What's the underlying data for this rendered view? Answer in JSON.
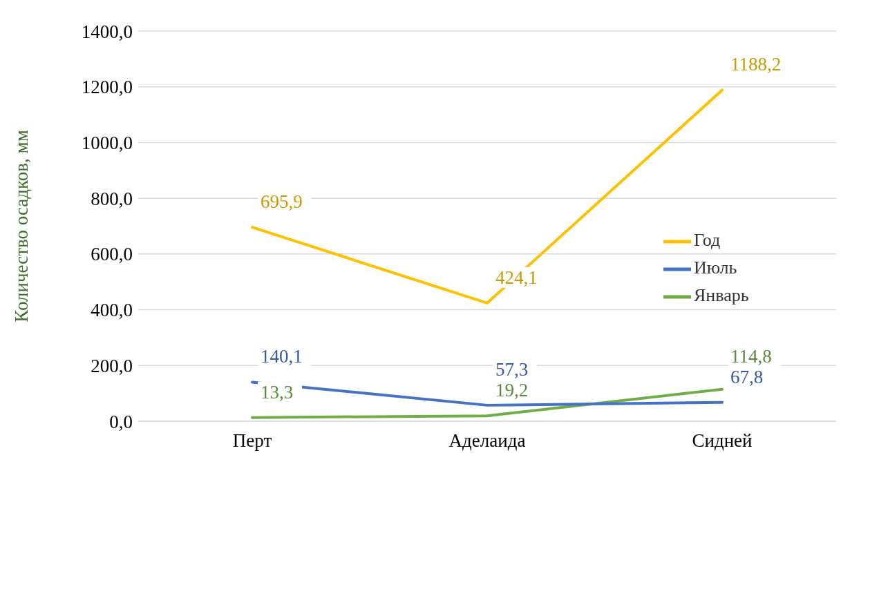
{
  "chart_data": {
    "type": "line",
    "ylabel": "Количество осадков, мм",
    "categories": [
      "Перт",
      "Аделаида",
      "Сидней"
    ],
    "series": [
      {
        "name": "Январь",
        "color": "#70ad47",
        "values": [
          13.3,
          19.2,
          114.8
        ],
        "value_labels": [
          "13,3",
          "19,2",
          "114,8"
        ]
      },
      {
        "name": "Июль",
        "color": "#4472c4",
        "values": [
          140.1,
          57.3,
          67.8
        ],
        "value_labels": [
          "140,1",
          "57,3",
          "67,8"
        ]
      },
      {
        "name": "Год",
        "color": "#ffc000",
        "values": [
          695.9,
          424.1,
          1188.2
        ],
        "value_labels": [
          "695,9",
          "424,1",
          "1188,2"
        ]
      }
    ],
    "ylim": [
      0,
      1400
    ],
    "yticks": [
      {
        "value": 0,
        "label": "0,0"
      },
      {
        "value": 200,
        "label": "200,0"
      },
      {
        "value": 400,
        "label": "400,0"
      },
      {
        "value": 600,
        "label": "600,0"
      },
      {
        "value": 800,
        "label": "800,0"
      },
      {
        "value": 1000,
        "label": "1000,0"
      },
      {
        "value": 1200,
        "label": "1200,0"
      },
      {
        "value": 1400,
        "label": "1400,0"
      }
    ],
    "grid": "y",
    "legend": "right",
    "marker": "none",
    "line_style": "solid"
  }
}
